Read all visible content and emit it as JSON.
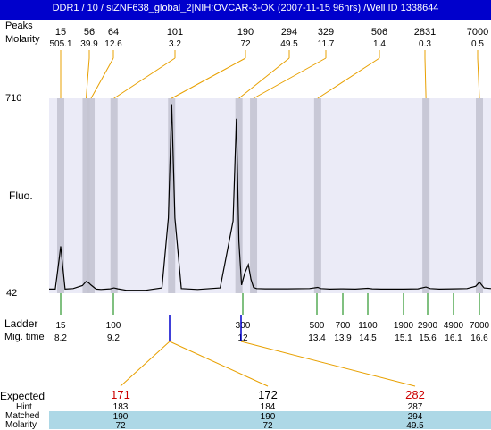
{
  "header": {
    "title": "DDR1 / 10 / siZNF638_global_2|NIH:OVCAR-3-OK (2007-11-15 96hrs) /Well ID 1338644",
    "row1_label": "Peaks",
    "row2_label": "Molarity"
  },
  "left_labels": {
    "ymax": "710",
    "ymin": "42",
    "ylabel": "Fluo.",
    "ladder": "Ladder",
    "migtime": "Mig. time",
    "expected": "Expected",
    "hint": "Hint",
    "matched": "Matched",
    "molarity": "Molarity"
  },
  "colors": {
    "title_bg": "#0000cc",
    "plot_bg": "#ebebf7",
    "band": "#c4c4d2",
    "peak_line": "#e8a000",
    "ladder_line": "#008000",
    "highlight": "#0000cc",
    "expected_red": "#cc0000",
    "row_bg": "#add8e6"
  },
  "chart_data": {
    "type": "line",
    "title": "DDR1 / 10 / siZNF638_global_2|NIH:OVCAR-3-OK (2007-11-15 96hrs) /Well ID 1338644",
    "ylabel": "Fluo.",
    "ylim": [
      42,
      710
    ],
    "xlim_size": [
      0,
      8000
    ],
    "grid": false,
    "peaks": [
      {
        "size": "15",
        "molarity": "505.1",
        "band_size": 15
      },
      {
        "size": "56",
        "molarity": "39.9",
        "band_size": 56
      },
      {
        "size": "64",
        "molarity": "12.6",
        "band_size": 64
      },
      {
        "size": "101",
        "molarity": "3.2",
        "band_size": 101
      },
      {
        "size": "190",
        "molarity": "72",
        "band_size": 190
      },
      {
        "size": "294",
        "molarity": "49.5",
        "band_size": 294
      },
      {
        "size": "329",
        "molarity": "11.7",
        "band_size": 329
      },
      {
        "size": "506",
        "molarity": "1.4",
        "band_size": 506
      },
      {
        "size": "2831",
        "molarity": "0.3",
        "band_size": 2831
      },
      {
        "size": "7000",
        "molarity": "0.5",
        "band_size": 7000
      }
    ],
    "ladder": [
      {
        "size": "15",
        "time": "8.2",
        "size_num": 15
      },
      {
        "size": "100",
        "time": "9.2",
        "size_num": 100
      },
      {
        "size": "300",
        "time": "12",
        "size_num": 300
      },
      {
        "size": "500",
        "time": "13.4",
        "size_num": 500
      },
      {
        "size": "700",
        "time": "13.9",
        "size_num": 700
      },
      {
        "size": "1100",
        "time": "14.5",
        "size_num": 1100
      },
      {
        "size": "1900",
        "time": "15.1",
        "size_num": 1900
      },
      {
        "size": "2900",
        "time": "15.6",
        "size_num": 2900
      },
      {
        "size": "4900",
        "time": "16.1",
        "size_num": 4900
      },
      {
        "size": "7000",
        "time": "16.6",
        "size_num": 7000
      }
    ],
    "trace_sizes": [
      0,
      8,
      13,
      15,
      17,
      22,
      35,
      50,
      56,
      60,
      64,
      72,
      80,
      95,
      101,
      107,
      120,
      150,
      175,
      185,
      190,
      195,
      205,
      230,
      265,
      285,
      290,
      294,
      298,
      305,
      315,
      322,
      329,
      337,
      360,
      420,
      480,
      506,
      530,
      600,
      700,
      900,
      1100,
      1200,
      1400,
      1900,
      2500,
      2831,
      3100,
      3800,
      4900,
      6000,
      6700,
      7000,
      7400,
      8000
    ],
    "trace_values": [
      56,
      56,
      160,
      203,
      160,
      56,
      58,
      68,
      82,
      78,
      70,
      56,
      55,
      57,
      60,
      57,
      52,
      52,
      60,
      300,
      690,
      300,
      58,
      55,
      60,
      290,
      640,
      220,
      70,
      110,
      140,
      90,
      62,
      58,
      57,
      57,
      58,
      62,
      58,
      56,
      57,
      56,
      59,
      57,
      56,
      56,
      57,
      63,
      58,
      56,
      57,
      58,
      66,
      80,
      60,
      58
    ],
    "highlight_ladder": [
      "100",
      "300"
    ],
    "expected": [
      {
        "expected": "171",
        "hint": "183",
        "matched": "190",
        "molarity": "72",
        "red": true,
        "band_size": 190
      },
      {
        "expected": "172",
        "hint": "184",
        "matched": "190",
        "molarity": "72",
        "red": false,
        "band_size": 190
      },
      {
        "expected": "282",
        "hint": "287",
        "matched": "294",
        "molarity": "49.5",
        "red": true,
        "band_size": 294
      }
    ]
  }
}
